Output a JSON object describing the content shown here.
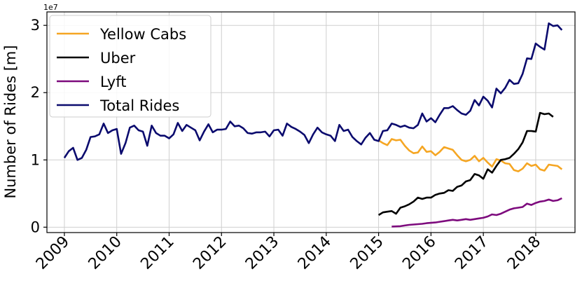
{
  "chart_data": {
    "type": "line",
    "title": "",
    "xlabel": "",
    "ylabel": "Number of Rides [m]",
    "y_exponent_label": "1e7",
    "x_range": [
      "2008-09-01",
      "2018-10-01"
    ],
    "ylim": [
      -800000,
      32000000
    ],
    "x_ticks": [
      "2009",
      "2010",
      "2011",
      "2012",
      "2013",
      "2014",
      "2015",
      "2016",
      "2017",
      "2018"
    ],
    "y_ticks": [
      {
        "value": 0,
        "label": "0"
      },
      {
        "value": 10000000,
        "label": "1"
      },
      {
        "value": 20000000,
        "label": "2"
      },
      {
        "value": 30000000,
        "label": "3"
      }
    ],
    "grid": true,
    "legend_position": "top-left",
    "series": [
      {
        "name": "Yellow Cabs",
        "color": "#f5a623",
        "start": "2015-01",
        "values": [
          12900000.0,
          12500000.0,
          12200000.0,
          13100000.0,
          12900000.0,
          13000000.0,
          12100000.0,
          11400000.0,
          11000000.0,
          11100000.0,
          12000000.0,
          11200000.0,
          11300000.0,
          10700000.0,
          11200000.0,
          11900000.0,
          11700000.0,
          11500000.0,
          10700000.0,
          10000000.0,
          9800000.0,
          10000000.0,
          10600000.0,
          9800000.0,
          10300000.0,
          9600000.0,
          9000000.0,
          10100000.0,
          9900000.0,
          9500000.0,
          9400000.0,
          8500000.0,
          8300000.0,
          8700000.0,
          9500000.0,
          9100000.0,
          9300000.0,
          8600000.0,
          8400000.0,
          9300000.0,
          9200000.0,
          9100000.0,
          8600000.0
        ]
      },
      {
        "name": "Uber",
        "color": "#000000",
        "start": "2015-01",
        "values": [
          1800000.0,
          2200000.0,
          2300000.0,
          2400000.0,
          2000000.0,
          2900000.0,
          3100000.0,
          3400000.0,
          3800000.0,
          4400000.0,
          4200000.0,
          4400000.0,
          4400000.0,
          4800000.0,
          5000000.0,
          5100000.0,
          5500000.0,
          5400000.0,
          6000000.0,
          6200000.0,
          6800000.0,
          7000000.0,
          7900000.0,
          7700000.0,
          7200000.0,
          8600000.0,
          8100000.0,
          9100000.0,
          10000000.0,
          10100000.0,
          10300000.0,
          10900000.0,
          11600000.0,
          12600000.0,
          14300000.0,
          14300000.0,
          14200000.0,
          17000000.0,
          16800000.0,
          16900000.0,
          16400000.0
        ]
      },
      {
        "name": "Lyft",
        "color": "#7d0a7d",
        "start": "2015-04",
        "values": [
          100000.0,
          120000.0,
          150000.0,
          250000.0,
          350000.0,
          400000.0,
          450000.0,
          500000.0,
          600000.0,
          650000.0,
          700000.0,
          800000.0,
          900000.0,
          1000000.0,
          1100000.0,
          1000000.0,
          1100000.0,
          1200000.0,
          1100000.0,
          1200000.0,
          1300000.0,
          1400000.0,
          1600000.0,
          1900000.0,
          1800000.0,
          2000000.0,
          2300000.0,
          2600000.0,
          2800000.0,
          2900000.0,
          3000000.0,
          3500000.0,
          3300000.0,
          3600000.0,
          3800000.0,
          3900000.0,
          4100000.0,
          3900000.0,
          4000000.0,
          4300000.0
        ]
      },
      {
        "name": "Total Rides",
        "color": "#0b0b6e",
        "start": "2009-01",
        "values": [
          10300000.0,
          11300000.0,
          11800000.0,
          10000000.0,
          10300000.0,
          11500000.0,
          13400000.0,
          13500000.0,
          13800000.0,
          15400000.0,
          14000000.0,
          14400000.0,
          14600000.0,
          10900000.0,
          12500000.0,
          14800000.0,
          15100000.0,
          14400000.0,
          14200000.0,
          12100000.0,
          15100000.0,
          14000000.0,
          13600000.0,
          13600000.0,
          13200000.0,
          13800000.0,
          15500000.0,
          14300000.0,
          15200000.0,
          14800000.0,
          14400000.0,
          12900000.0,
          14200000.0,
          15300000.0,
          14100000.0,
          14500000.0,
          14500000.0,
          14600000.0,
          15700000.0,
          15000000.0,
          15100000.0,
          14700000.0,
          14000000.0,
          13900000.0,
          14100000.0,
          14100000.0,
          14200000.0,
          13500000.0,
          14400000.0,
          14500000.0,
          13600000.0,
          15400000.0,
          14900000.0,
          14600000.0,
          14200000.0,
          13700000.0,
          12500000.0,
          13800000.0,
          14800000.0,
          14100000.0,
          13800000.0,
          13600000.0,
          12800000.0,
          15200000.0,
          14300000.0,
          14500000.0,
          13400000.0,
          12800000.0,
          12300000.0,
          13300000.0,
          14000000.0,
          13000000.0,
          12800000.0,
          14300000.0,
          14400000.0,
          15400000.0,
          15200000.0,
          14900000.0,
          15100000.0,
          14800000.0,
          14700000.0,
          15200000.0,
          16900000.0,
          15700000.0,
          16200000.0,
          15600000.0,
          16700000.0,
          17700000.0,
          17700000.0,
          18000000.0,
          17400000.0,
          16900000.0,
          16700000.0,
          17300000.0,
          18900000.0,
          18100000.0,
          19400000.0,
          18800000.0,
          17800000.0,
          20600000.0,
          19900000.0,
          20700000.0,
          21900000.0,
          21300000.0,
          21400000.0,
          22800000.0,
          25100000.0,
          25000000.0,
          27300000.0,
          26800000.0,
          26400000.0,
          30300000.0,
          29900000.0,
          30000000.0,
          29300000.0
        ]
      }
    ]
  }
}
